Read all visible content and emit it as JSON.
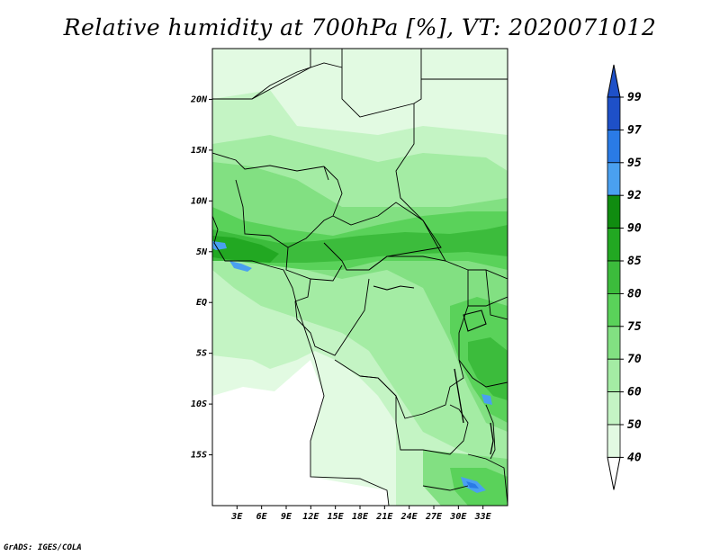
{
  "title": "Relative humidity at 700hPa [%], VT: 2020071012",
  "credit": "GrADS: IGES/COLA",
  "map": {
    "lon_range": [
      0,
      36
    ],
    "lat_range": [
      -20,
      25
    ],
    "lat_ticks": [
      "20N",
      "15N",
      "10N",
      "5N",
      "EQ",
      "5S",
      "10S",
      "15S"
    ],
    "lat_values": [
      20,
      15,
      10,
      5,
      0,
      -5,
      -10,
      -15
    ],
    "lon_ticks": [
      "3E",
      "6E",
      "9E",
      "12E",
      "15E",
      "18E",
      "21E",
      "24E",
      "27E",
      "30E",
      "33E"
    ],
    "lon_values": [
      3,
      6,
      9,
      12,
      15,
      18,
      21,
      24,
      27,
      30,
      33
    ]
  },
  "colorbar": {
    "labels": [
      "99",
      "97",
      "95",
      "92",
      "90",
      "85",
      "80",
      "75",
      "70",
      "60",
      "50",
      "40"
    ],
    "colors": [
      "#1e50c8",
      "#2a7be6",
      "#4aa0f0",
      "#108c10",
      "#22a822",
      "#3cbc3c",
      "#5ad25a",
      "#82e082",
      "#a4eca4",
      "#c4f4c4",
      "#e2fae2",
      "#ffffff"
    ]
  },
  "colors": {
    "border": "#000000",
    "background": "#ffffff"
  }
}
